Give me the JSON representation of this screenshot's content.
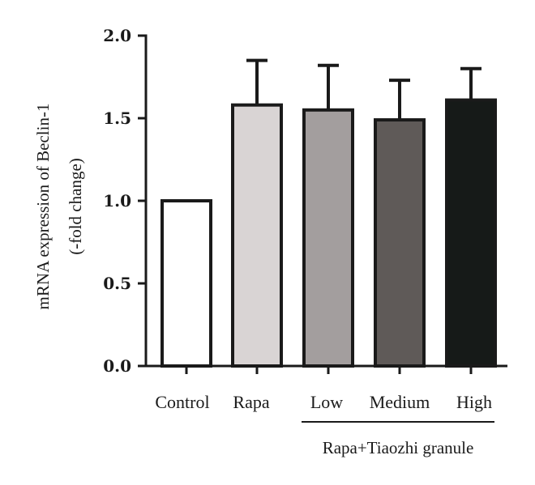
{
  "chart_data": {
    "type": "bar",
    "categories": [
      "Control",
      "Rapa",
      "Low",
      "Medium",
      "High"
    ],
    "values": [
      1.0,
      1.58,
      1.55,
      1.49,
      1.61
    ],
    "error_upper": [
      0,
      0.27,
      0.27,
      0.24,
      0.19
    ],
    "colors": [
      "#ffffff",
      "#d9d4d4",
      "#a39e9e",
      "#5f5a58",
      "#161a18"
    ],
    "ylabel_line1": "mRNA expression of Beclin-1",
    "ylabel_line2": "(-fold change)",
    "ylim": [
      0,
      2.0
    ],
    "yticks": [
      "0.0",
      "0.5",
      "1.0",
      "1.5",
      "2.0"
    ],
    "ytick_values": [
      0,
      0.5,
      1.0,
      1.5,
      2.0
    ],
    "group_label": "Rapa+Tiaozhi granule",
    "group_categories": [
      "Low",
      "Medium",
      "High"
    ],
    "grid": false,
    "legend": "none"
  }
}
